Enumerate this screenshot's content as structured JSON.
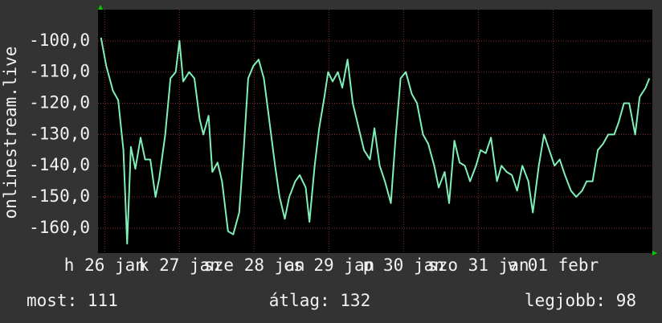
{
  "chart_data": {
    "type": "line",
    "y_label": "onlinestream.live",
    "xlim": [
      -0.09,
      7.33
    ],
    "xticks": [
      {
        "value": 0,
        "label": "h 26 jan"
      },
      {
        "value": 1,
        "label": "k 27 jan"
      },
      {
        "value": 2,
        "label": "sze 28 jan"
      },
      {
        "value": 3,
        "label": "cs 29 jan"
      },
      {
        "value": 4,
        "label": "p 30 jan"
      },
      {
        "value": 5,
        "label": "szo 31 jan"
      },
      {
        "value": 6,
        "label": "v 01 febr"
      }
    ],
    "ylim": [
      -168,
      -90
    ],
    "yticks": [
      {
        "value": -100,
        "label": "-100,0"
      },
      {
        "value": -110,
        "label": "-110,0"
      },
      {
        "value": -120,
        "label": "-120,0"
      },
      {
        "value": -130,
        "label": "-130,0"
      },
      {
        "value": -140,
        "label": "-140,0"
      },
      {
        "value": -150,
        "label": "-150,0"
      },
      {
        "value": -160,
        "label": "-160,0"
      }
    ],
    "grid": true,
    "x": [
      -0.05,
      0.02,
      0.11,
      0.18,
      0.25,
      0.3,
      0.35,
      0.41,
      0.48,
      0.54,
      0.61,
      0.68,
      0.73,
      0.81,
      0.88,
      0.95,
      1.0,
      1.05,
      1.13,
      1.2,
      1.27,
      1.32,
      1.39,
      1.44,
      1.51,
      1.57,
      1.65,
      1.72,
      1.8,
      1.86,
      1.92,
      1.99,
      2.06,
      2.13,
      2.2,
      2.28,
      2.34,
      2.41,
      2.47,
      2.55,
      2.61,
      2.69,
      2.74,
      2.81,
      2.87,
      2.94,
      2.99,
      3.05,
      3.12,
      3.18,
      3.25,
      3.32,
      3.4,
      3.47,
      3.55,
      3.61,
      3.68,
      3.75,
      3.83,
      3.89,
      3.96,
      4.03,
      4.11,
      4.18,
      4.26,
      4.33,
      4.41,
      4.47,
      4.55,
      4.61,
      4.68,
      4.75,
      4.82,
      4.89,
      4.97,
      5.03,
      5.1,
      5.17,
      5.25,
      5.31,
      5.38,
      5.45,
      5.52,
      5.59,
      5.67,
      5.73,
      5.81,
      5.88,
      5.95,
      6.02,
      6.09,
      6.16,
      6.24,
      6.31,
      6.39,
      6.45,
      6.53,
      6.6,
      6.67,
      6.74,
      6.82,
      6.88,
      6.95,
      7.02,
      7.1,
      7.16,
      7.24,
      7.29
    ],
    "series": [
      {
        "color": "#7ff0b8",
        "values": [
          -99,
          -108,
          -116,
          -119,
          -135,
          -165,
          -134,
          -141,
          -131,
          -138,
          -138,
          -150,
          -144,
          -130,
          -112,
          -110,
          -100,
          -113,
          -110,
          -112,
          -125,
          -130,
          -124,
          -142,
          -139,
          -145,
          -161,
          -162,
          -155,
          -135,
          -112,
          -108,
          -106,
          -112,
          -125,
          -140,
          -150,
          -157,
          -150,
          -145,
          -143,
          -147,
          -158,
          -140,
          -128,
          -118,
          -110,
          -113,
          -110,
          -115,
          -106,
          -120,
          -128,
          -135,
          -138,
          -128,
          -140,
          -145,
          -152,
          -132,
          -112,
          -110,
          -117,
          -120,
          -130,
          -133,
          -140,
          -147,
          -142,
          -152,
          -132,
          -139,
          -140,
          -145,
          -140,
          -135,
          -136,
          -131,
          -145,
          -140,
          -142,
          -143,
          -148,
          -140,
          -145,
          -155,
          -140,
          -130,
          -135,
          -140,
          -138,
          -143,
          -148,
          -150,
          -148,
          -145,
          -145,
          -135,
          -133,
          -130,
          -130,
          -126,
          -120,
          -120,
          -130,
          -118,
          -115,
          -112
        ]
      }
    ],
    "stats": [
      "most: 111",
      "átlag: 132",
      "legjobb: 98"
    ]
  }
}
